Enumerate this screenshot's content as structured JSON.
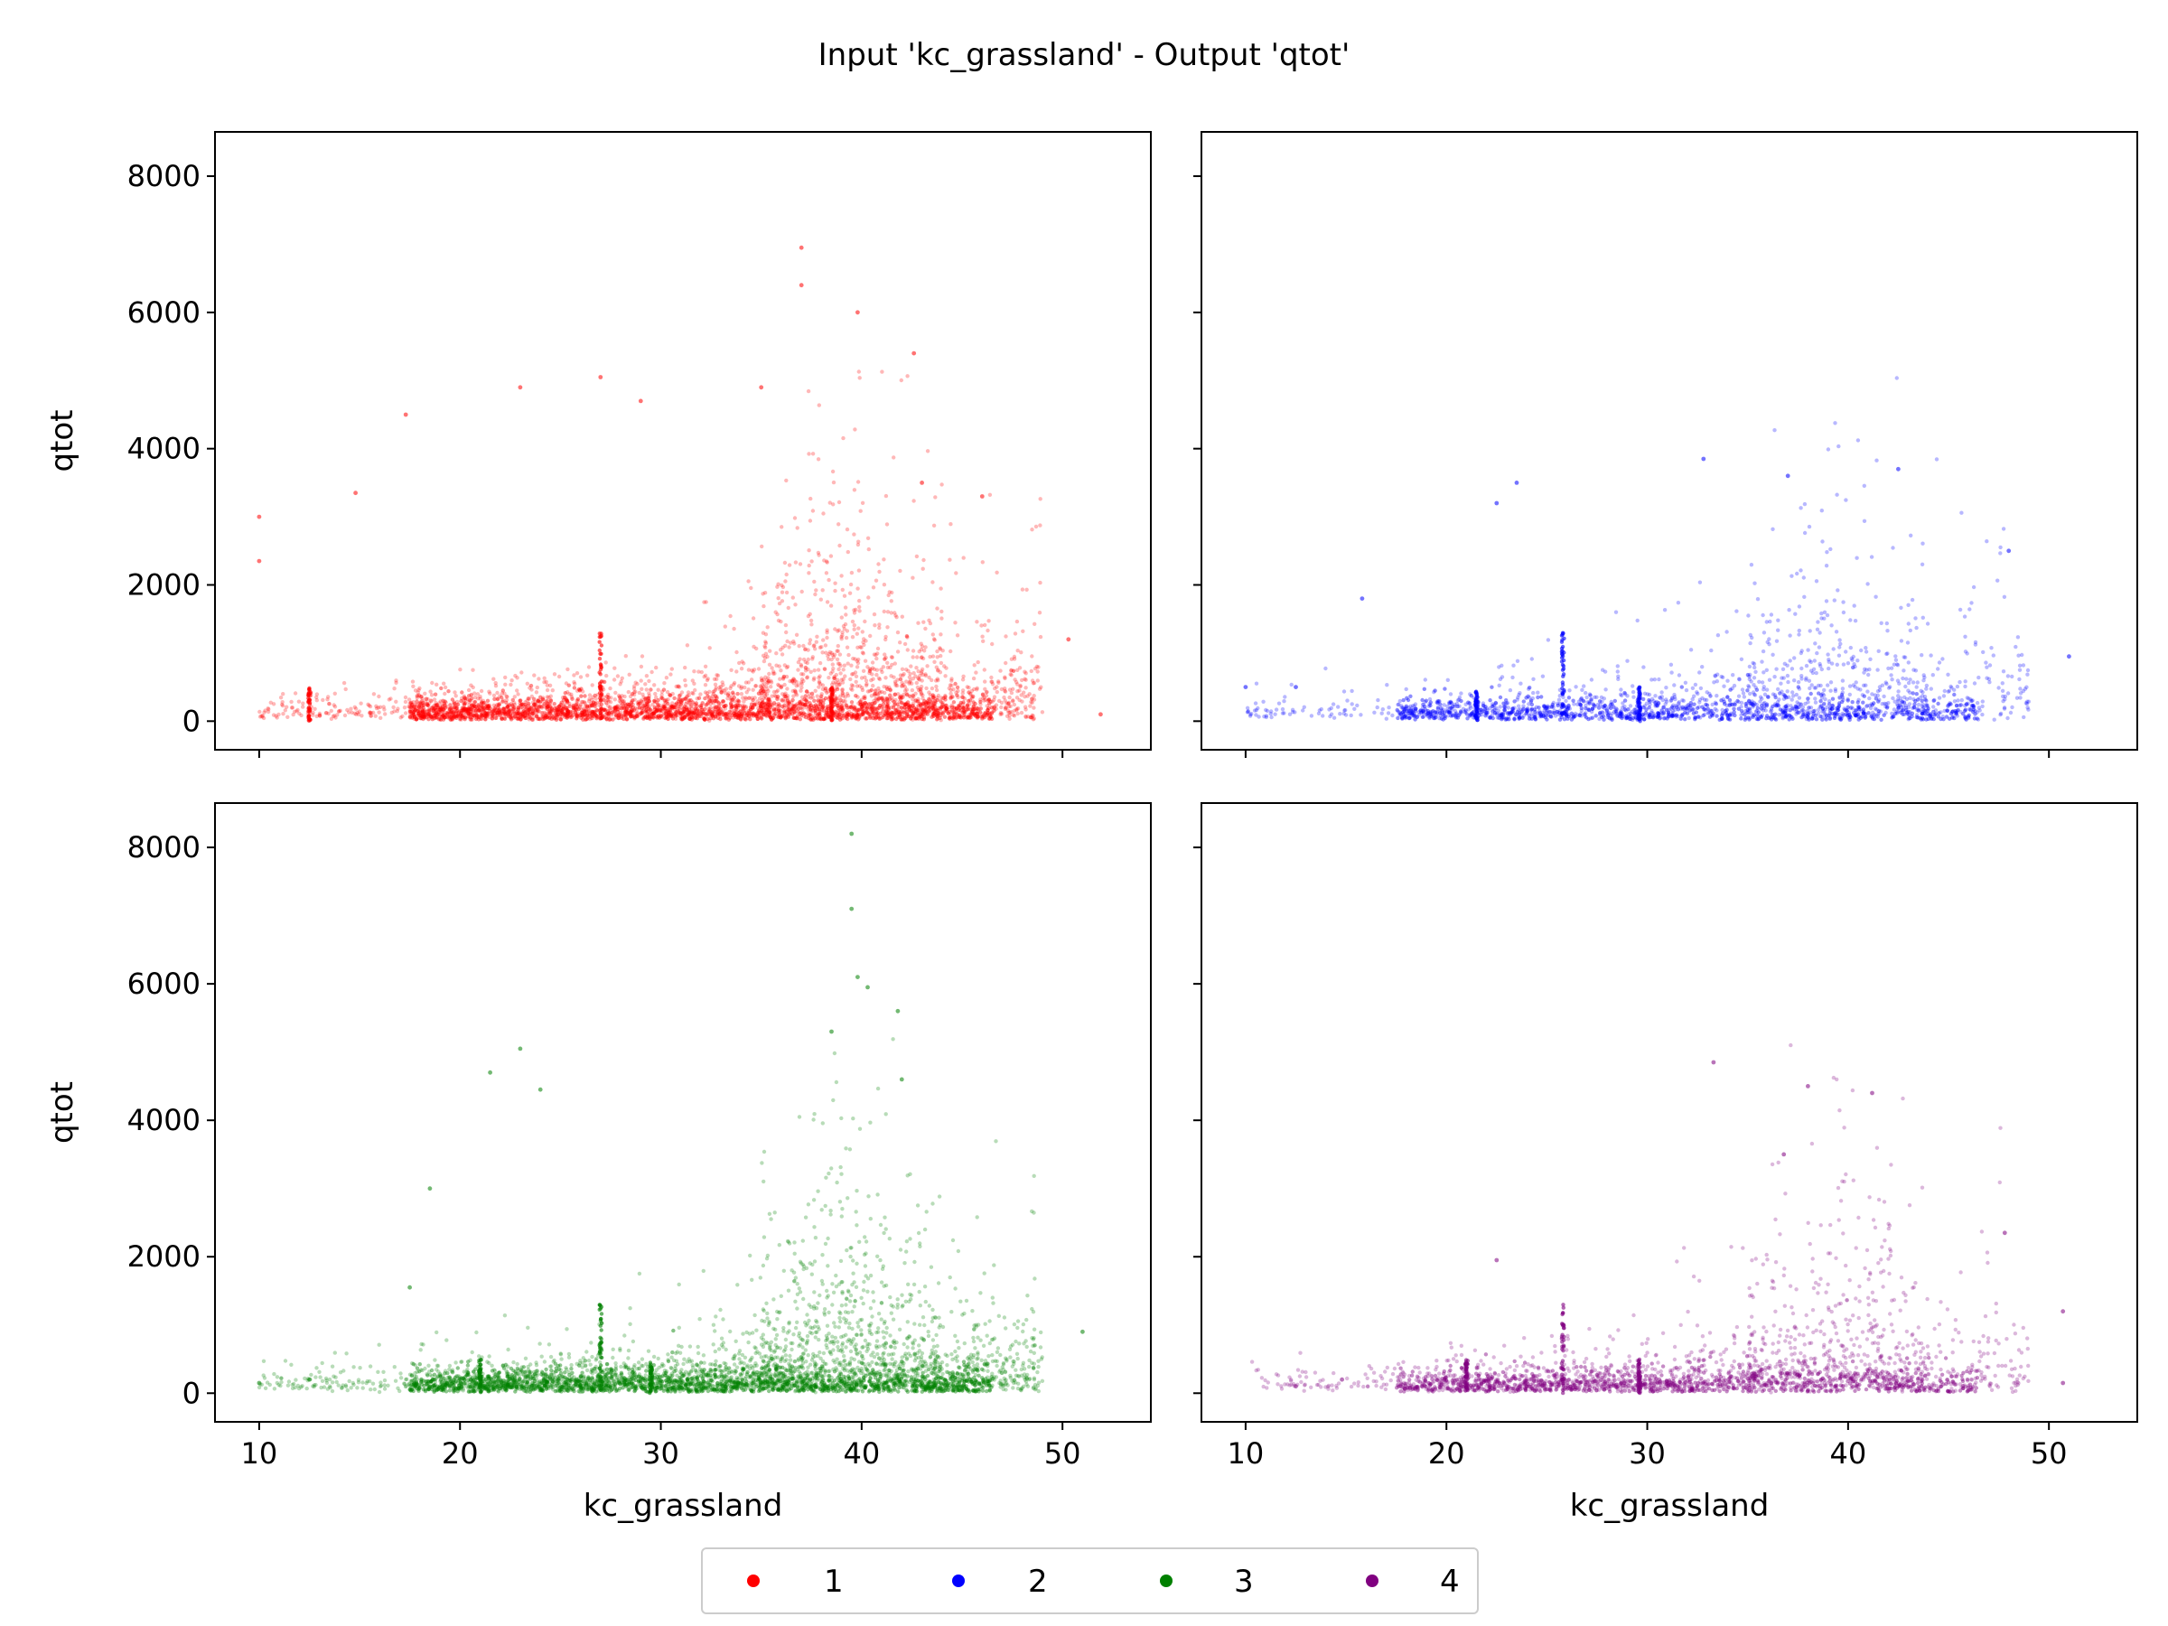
{
  "figure": {
    "title": "Input 'kc_grassland' - Output 'qtot'",
    "legend": {
      "placement": "bottom-center",
      "entries": [
        {
          "label": "1",
          "color": "#ff0000"
        },
        {
          "label": "2",
          "color": "#0000ff"
        },
        {
          "label": "3",
          "color": "#008000"
        },
        {
          "label": "4",
          "color": "#800080"
        }
      ]
    }
  },
  "chart_data": [
    {
      "type": "scatter",
      "panel": "top-left",
      "series": [
        {
          "name": "1",
          "color": "#ff0000",
          "n": 2600,
          "spike_x": [
            12.5,
            27.0,
            38.5
          ],
          "outliers": [
            [
              37.0,
              6950
            ],
            [
              37.0,
              6400
            ],
            [
              39.8,
              6000
            ],
            [
              42.6,
              5400
            ],
            [
              35.0,
              4900
            ],
            [
              23.0,
              4900
            ],
            [
              27.0,
              5050
            ],
            [
              29.0,
              4700
            ],
            [
              17.3,
              4500
            ],
            [
              10.0,
              3000
            ],
            [
              10.0,
              2350
            ],
            [
              14.8,
              3350
            ],
            [
              50.3,
              1200
            ],
            [
              51.9,
              100
            ],
            [
              43.0,
              3500
            ],
            [
              46.0,
              3300
            ]
          ]
        }
      ],
      "xlabel": "",
      "ylabel": "qtot",
      "xlim": [
        7.8,
        54.4
      ],
      "ylim": [
        -420,
        8650
      ],
      "xticks": [
        10,
        20,
        30,
        40,
        50
      ],
      "yticks": [
        0,
        2000,
        4000,
        6000,
        8000
      ],
      "xtick_labels": [],
      "ytick_labels": [
        "0",
        "2000",
        "4000",
        "6000",
        "8000"
      ]
    },
    {
      "type": "scatter",
      "panel": "top-right",
      "series": [
        {
          "name": "2",
          "color": "#0000ff",
          "n": 1300,
          "spike_x": [
            21.5,
            25.8,
            29.6
          ],
          "outliers": [
            [
              32.8,
              3850
            ],
            [
              42.5,
              3700
            ],
            [
              37.0,
              3600
            ],
            [
              23.5,
              3500
            ],
            [
              22.5,
              3200
            ],
            [
              48.0,
              2500
            ],
            [
              10.0,
              500
            ],
            [
              12.5,
              500
            ],
            [
              15.8,
              1800
            ],
            [
              51.0,
              950
            ]
          ]
        }
      ],
      "xlabel": "",
      "ylabel": "",
      "xlim": [
        7.8,
        54.4
      ],
      "ylim": [
        -420,
        8650
      ],
      "xticks": [
        10,
        20,
        30,
        40,
        50
      ],
      "yticks": [
        0,
        2000,
        4000,
        6000,
        8000
      ],
      "xtick_labels": [],
      "ytick_labels": []
    },
    {
      "type": "scatter",
      "panel": "bottom-left",
      "series": [
        {
          "name": "3",
          "color": "#008000",
          "n": 2600,
          "spike_x": [
            21.0,
            27.0,
            29.5
          ],
          "outliers": [
            [
              39.5,
              8200
            ],
            [
              39.5,
              7100
            ],
            [
              39.8,
              6100
            ],
            [
              40.3,
              5950
            ],
            [
              38.5,
              5300
            ],
            [
              41.8,
              5600
            ],
            [
              23.0,
              5050
            ],
            [
              21.5,
              4700
            ],
            [
              24.0,
              4450
            ],
            [
              42.0,
              4600
            ],
            [
              10.0,
              150
            ],
            [
              12.5,
              200
            ],
            [
              17.5,
              1550
            ],
            [
              18.5,
              3000
            ],
            [
              51.0,
              900
            ]
          ]
        }
      ],
      "xlabel": "kc_grassland",
      "ylabel": "qtot",
      "xlim": [
        7.8,
        54.4
      ],
      "ylim": [
        -420,
        8650
      ],
      "xticks": [
        10,
        20,
        30,
        40,
        50
      ],
      "yticks": [
        0,
        2000,
        4000,
        6000,
        8000
      ],
      "xtick_labels": [
        "10",
        "20",
        "30",
        "40",
        "50"
      ],
      "ytick_labels": [
        "0",
        "2000",
        "4000",
        "6000",
        "8000"
      ]
    },
    {
      "type": "scatter",
      "panel": "bottom-right",
      "series": [
        {
          "name": "4",
          "color": "#800080",
          "n": 1500,
          "spike_x": [
            21.0,
            25.8,
            29.6
          ],
          "outliers": [
            [
              33.3,
              4850
            ],
            [
              38.0,
              4500
            ],
            [
              41.2,
              4400
            ],
            [
              36.8,
              3500
            ],
            [
              12.5,
              100
            ],
            [
              14.8,
              200
            ],
            [
              22.5,
              1950
            ],
            [
              47.8,
              2350
            ],
            [
              50.7,
              150
            ],
            [
              50.7,
              1200
            ]
          ]
        }
      ],
      "xlabel": "kc_grassland",
      "ylabel": "",
      "xlim": [
        7.8,
        54.4
      ],
      "ylim": [
        -420,
        8650
      ],
      "xticks": [
        10,
        20,
        30,
        40,
        50
      ],
      "yticks": [
        0,
        2000,
        4000,
        6000,
        8000
      ],
      "xtick_labels": [
        "10",
        "20",
        "30",
        "40",
        "50"
      ],
      "ytick_labels": []
    }
  ]
}
